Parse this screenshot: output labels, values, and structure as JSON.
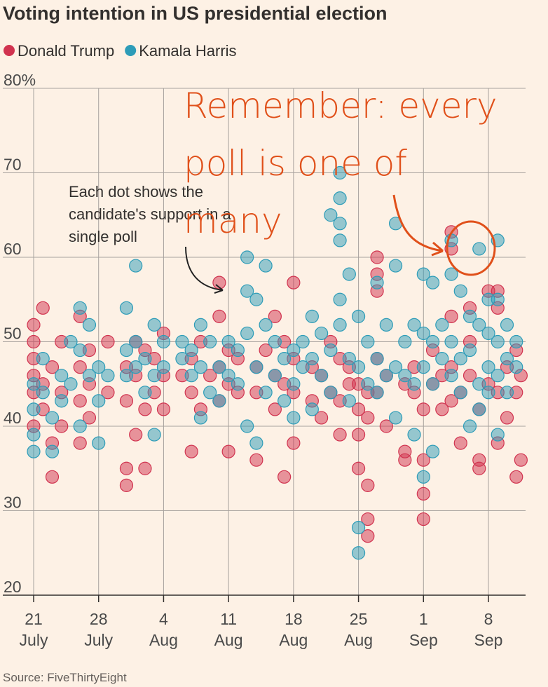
{
  "chart_data": {
    "type": "scatter",
    "title": "Voting intention in US presidential election",
    "source": "Source: FiveThirtyEight",
    "annotations": [
      "Each dot shows the candidate's support in a single poll",
      "Remember: every poll is one of many"
    ],
    "xlim": [
      0,
      53
    ],
    "xticks": [
      {
        "value": 0,
        "label": "21 July"
      },
      {
        "value": 7,
        "label": "28 July"
      },
      {
        "value": 14,
        "label": "4 Aug"
      },
      {
        "value": 21,
        "label": "11 Aug"
      },
      {
        "value": 28,
        "label": "18 Aug"
      },
      {
        "value": 35,
        "label": "25 Aug"
      },
      {
        "value": 42,
        "label": "1 Sep"
      },
      {
        "value": 49,
        "label": "8 Sep"
      }
    ],
    "ylim": [
      20,
      80
    ],
    "yticks": [
      20,
      30,
      40,
      50,
      60,
      70,
      {
        "value": 80,
        "label": "80%"
      }
    ],
    "grid": true,
    "series": [
      {
        "name": "Donald Trump",
        "color": "#d1334f",
        "x": [
          0,
          0,
          0,
          0,
          0,
          0,
          1,
          1,
          1,
          2,
          2,
          2,
          3,
          3,
          3,
          5,
          5,
          5,
          5,
          6,
          6,
          6,
          8,
          8,
          10,
          10,
          10,
          10,
          11,
          11,
          11,
          12,
          12,
          12,
          13,
          13,
          14,
          14,
          14,
          16,
          17,
          17,
          17,
          18,
          18,
          19,
          20,
          20,
          20,
          20,
          21,
          21,
          21,
          22,
          22,
          24,
          24,
          24,
          25,
          26,
          26,
          26,
          27,
          27,
          27,
          28,
          28,
          28,
          28,
          30,
          30,
          31,
          31,
          32,
          32,
          33,
          33,
          33,
          34,
          34,
          35,
          35,
          35,
          35,
          36,
          36,
          36,
          36,
          36,
          37,
          37,
          37,
          37,
          37,
          38,
          38,
          40,
          40,
          40,
          41,
          41,
          42,
          42,
          42,
          42,
          43,
          43,
          44,
          44,
          45,
          45,
          45,
          45,
          45,
          46,
          46,
          47,
          47,
          47,
          48,
          48,
          48,
          49,
          49,
          50,
          50,
          50,
          50,
          51,
          51,
          52,
          52,
          52,
          52.5,
          52.5
        ],
        "values": [
          48,
          50,
          52,
          46,
          44,
          40,
          54,
          45,
          42,
          38,
          34,
          47,
          44,
          50,
          40,
          53,
          47,
          43,
          38,
          49,
          45,
          41,
          50,
          44,
          33,
          35,
          47,
          43,
          39,
          46,
          50,
          42,
          49,
          35,
          48,
          44,
          51,
          46,
          42,
          46,
          48,
          44,
          37,
          50,
          42,
          46,
          57,
          53,
          47,
          43,
          49,
          45,
          37,
          48,
          44,
          36,
          44,
          47,
          49,
          53,
          46,
          42,
          34,
          45,
          50,
          57,
          48,
          44,
          38,
          47,
          43,
          46,
          41,
          50,
          44,
          48,
          39,
          43,
          47,
          45,
          45,
          42,
          39,
          35,
          33,
          29,
          27,
          41,
          44,
          60,
          58,
          56,
          48,
          44,
          40,
          46,
          45,
          37,
          36,
          44,
          47,
          32,
          36,
          29,
          42,
          45,
          49,
          46,
          42,
          63,
          61,
          53,
          47,
          43,
          44,
          38,
          54,
          50,
          46,
          42,
          36,
          35,
          56,
          45,
          56,
          54,
          44,
          38,
          47,
          41,
          49,
          34,
          44,
          36,
          46
        ]
      },
      {
        "name": "Kamala Harris",
        "color": "#2d9cb8",
        "x": [
          0,
          0,
          0,
          0,
          1,
          1,
          2,
          2,
          3,
          3,
          4,
          4,
          5,
          5,
          5,
          6,
          6,
          7,
          7,
          7,
          8,
          10,
          10,
          10,
          11,
          11,
          11,
          12,
          12,
          13,
          13,
          13,
          14,
          14,
          16,
          16,
          17,
          17,
          18,
          18,
          18,
          19,
          19,
          20,
          20,
          21,
          21,
          22,
          22,
          23,
          23,
          23,
          23,
          24,
          24,
          24,
          25,
          25,
          25,
          26,
          26,
          27,
          27,
          28,
          28,
          28,
          29,
          29,
          30,
          30,
          30,
          31,
          31,
          32,
          32,
          32,
          33,
          33,
          33,
          33,
          33,
          33,
          34,
          34,
          34,
          35,
          35,
          35,
          35,
          36,
          36,
          37,
          37,
          37,
          38,
          38,
          39,
          39,
          39,
          39,
          40,
          40,
          41,
          41,
          41,
          42,
          42,
          42,
          42,
          43,
          43,
          43,
          43,
          44,
          44,
          45,
          45,
          45,
          45,
          46,
          46,
          46,
          47,
          47,
          47,
          48,
          48,
          48,
          48,
          49,
          49,
          49,
          49,
          50,
          50,
          50,
          50,
          50,
          51,
          51,
          51,
          52,
          52
        ],
        "values": [
          45,
          37,
          39,
          42,
          48,
          44,
          37,
          41,
          46,
          43,
          50,
          45,
          54,
          49,
          40,
          52,
          46,
          47,
          43,
          38,
          46,
          54,
          49,
          46,
          59,
          50,
          47,
          48,
          44,
          52,
          46,
          39,
          50,
          47,
          50,
          48,
          49,
          46,
          52,
          47,
          41,
          50,
          44,
          47,
          43,
          46,
          50,
          49,
          45,
          60,
          56,
          51,
          40,
          55,
          47,
          38,
          59,
          52,
          44,
          50,
          46,
          48,
          43,
          49,
          45,
          41,
          50,
          47,
          53,
          48,
          42,
          51,
          46,
          65,
          49,
          44,
          70,
          67,
          64,
          62,
          55,
          52,
          58,
          48,
          43,
          28,
          25,
          53,
          47,
          50,
          45,
          57,
          48,
          44,
          52,
          46,
          64,
          59,
          47,
          41,
          50,
          46,
          52,
          45,
          39,
          58,
          51,
          47,
          34,
          57,
          50,
          45,
          37,
          52,
          48,
          62,
          58,
          50,
          46,
          56,
          48,
          44,
          53,
          49,
          40,
          61,
          52,
          45,
          42,
          55,
          51,
          47,
          44,
          62,
          55,
          50,
          46,
          39,
          52,
          48,
          44,
          50,
          47
        ]
      }
    ]
  }
}
